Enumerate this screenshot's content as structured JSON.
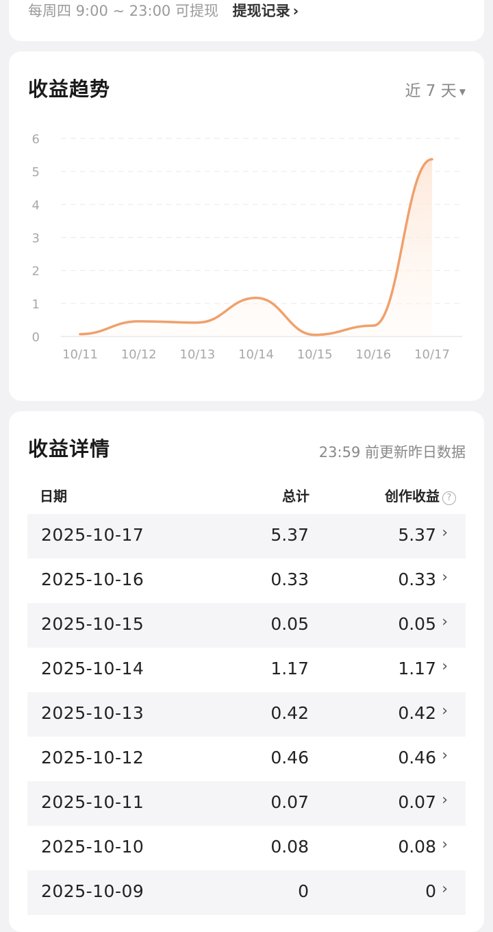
{
  "withdraw": {
    "schedule": "每周四 9:00 ~ 23:00 可提现",
    "records_link": "提现记录"
  },
  "trend": {
    "title": "收益趋势",
    "range_label": "近 7 天"
  },
  "chart_data": {
    "type": "line",
    "x": [
      "10/11",
      "10/12",
      "10/13",
      "10/14",
      "10/15",
      "10/16",
      "10/17"
    ],
    "values": [
      0.07,
      0.46,
      0.42,
      1.17,
      0.05,
      0.33,
      5.37
    ],
    "y_ticks": [
      "0",
      "1",
      "2",
      "3",
      "4",
      "5",
      "6"
    ],
    "ylim": [
      0,
      6
    ],
    "grid": true,
    "smooth": true,
    "area_fill": true,
    "line_color": "#f0a06c"
  },
  "detail": {
    "title": "收益详情",
    "subtitle": "23:59 前更新昨日数据",
    "columns": {
      "date": "日期",
      "total": "总计",
      "creation": "创作收益"
    },
    "help_glyph": "?",
    "rows": [
      {
        "date": "2025-10-17",
        "total": "5.37",
        "creation": "5.37"
      },
      {
        "date": "2025-10-16",
        "total": "0.33",
        "creation": "0.33"
      },
      {
        "date": "2025-10-15",
        "total": "0.05",
        "creation": "0.05"
      },
      {
        "date": "2025-10-14",
        "total": "1.17",
        "creation": "1.17"
      },
      {
        "date": "2025-10-13",
        "total": "0.42",
        "creation": "0.42"
      },
      {
        "date": "2025-10-12",
        "total": "0.46",
        "creation": "0.46"
      },
      {
        "date": "2025-10-11",
        "total": "0.07",
        "creation": "0.07"
      },
      {
        "date": "2025-10-10",
        "total": "0.08",
        "creation": "0.08"
      },
      {
        "date": "2025-10-09",
        "total": "0",
        "creation": "0"
      }
    ]
  }
}
